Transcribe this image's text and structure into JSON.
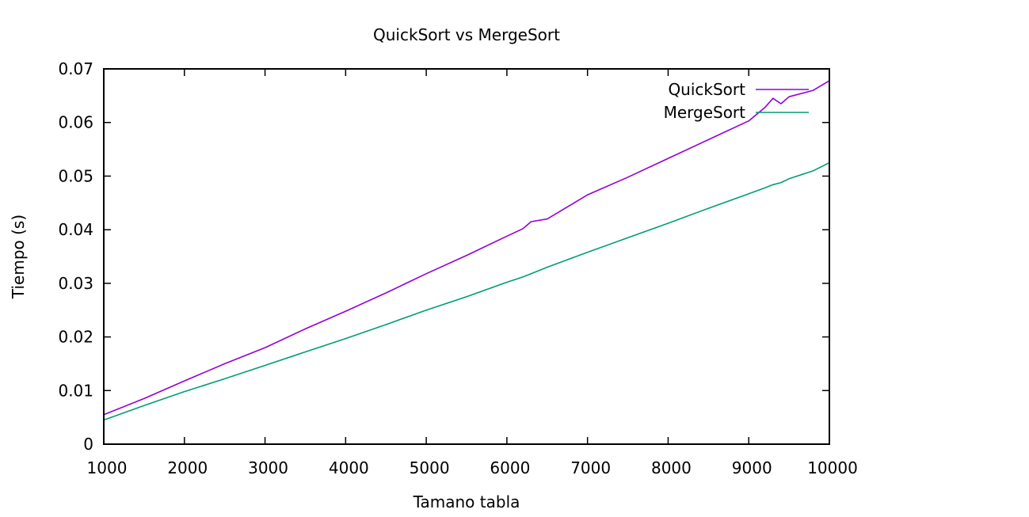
{
  "chart_data": {
    "type": "line",
    "title": "QuickSort vs MergeSort",
    "xlabel": "Tamano tabla",
    "ylabel": "Tiempo (s)",
    "xlim": [
      1000,
      10000
    ],
    "ylim": [
      0,
      0.07
    ],
    "xticks": [
      1000,
      2000,
      3000,
      4000,
      5000,
      6000,
      7000,
      8000,
      9000,
      10000
    ],
    "xtick_labels": [
      "1000",
      "2000",
      "3000",
      "4000",
      "5000",
      "6000",
      "7000",
      "8000",
      "9000",
      "10000"
    ],
    "yticks": [
      0,
      0.01,
      0.02,
      0.03,
      0.04,
      0.05,
      0.06,
      0.07
    ],
    "ytick_labels": [
      "0",
      "0.01",
      "0.02",
      "0.03",
      "0.04",
      "0.05",
      "0.06",
      "0.07"
    ],
    "grid": false,
    "legend_position": "top-right",
    "x": [
      1000,
      1500,
      2000,
      2500,
      3000,
      3500,
      4000,
      4500,
      5000,
      5500,
      6000,
      6200,
      6300,
      6500,
      7000,
      7500,
      8000,
      8500,
      9000,
      9200,
      9300,
      9400,
      9500,
      9800,
      10000
    ],
    "series": [
      {
        "name": "QuickSort",
        "color": "#9400d3",
        "values": [
          0.0055,
          0.0085,
          0.0118,
          0.015,
          0.018,
          0.0215,
          0.0248,
          0.0282,
          0.0318,
          0.0352,
          0.0388,
          0.0402,
          0.0415,
          0.042,
          0.0465,
          0.0498,
          0.0533,
          0.0568,
          0.0603,
          0.0628,
          0.0645,
          0.0635,
          0.0648,
          0.066,
          0.0678
        ]
      },
      {
        "name": "MergeSort",
        "color": "#009e73",
        "values": [
          0.0045,
          0.0072,
          0.0098,
          0.0122,
          0.0147,
          0.0172,
          0.0197,
          0.0223,
          0.025,
          0.0275,
          0.0302,
          0.0312,
          0.0318,
          0.033,
          0.0358,
          0.0385,
          0.0412,
          0.044,
          0.0467,
          0.0478,
          0.0484,
          0.0488,
          0.0495,
          0.051,
          0.0525
        ]
      }
    ]
  }
}
